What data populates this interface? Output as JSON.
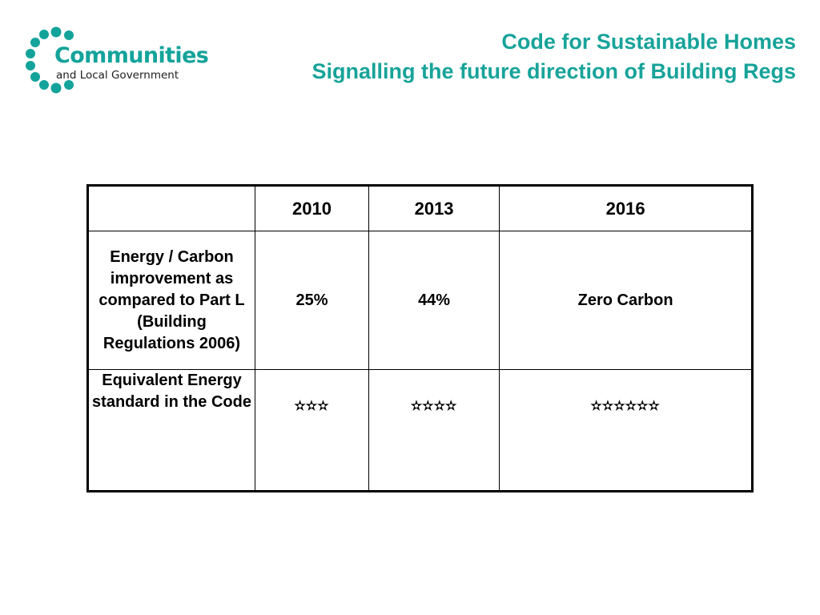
{
  "logo": {
    "name": "Communities",
    "subtitle": "and Local Government",
    "color": "#13a39b"
  },
  "title": {
    "line1": "Code for Sustainable Homes",
    "line2": "Signalling the future direction of Building Regs",
    "color": "#17a39a"
  },
  "table": {
    "headers": [
      "",
      "2010",
      "2013",
      "2016"
    ],
    "rows": [
      {
        "label": "Energy / Carbon improvement as compared to Part L (Building Regulations 2006)",
        "values": [
          "25%",
          "44%",
          "Zero Carbon"
        ]
      },
      {
        "label": "Equivalent Energy standard in the Code",
        "values": [
          "✫✫✫",
          "✫✫✫✫",
          "✫✫✫✫✫✫"
        ]
      }
    ]
  }
}
